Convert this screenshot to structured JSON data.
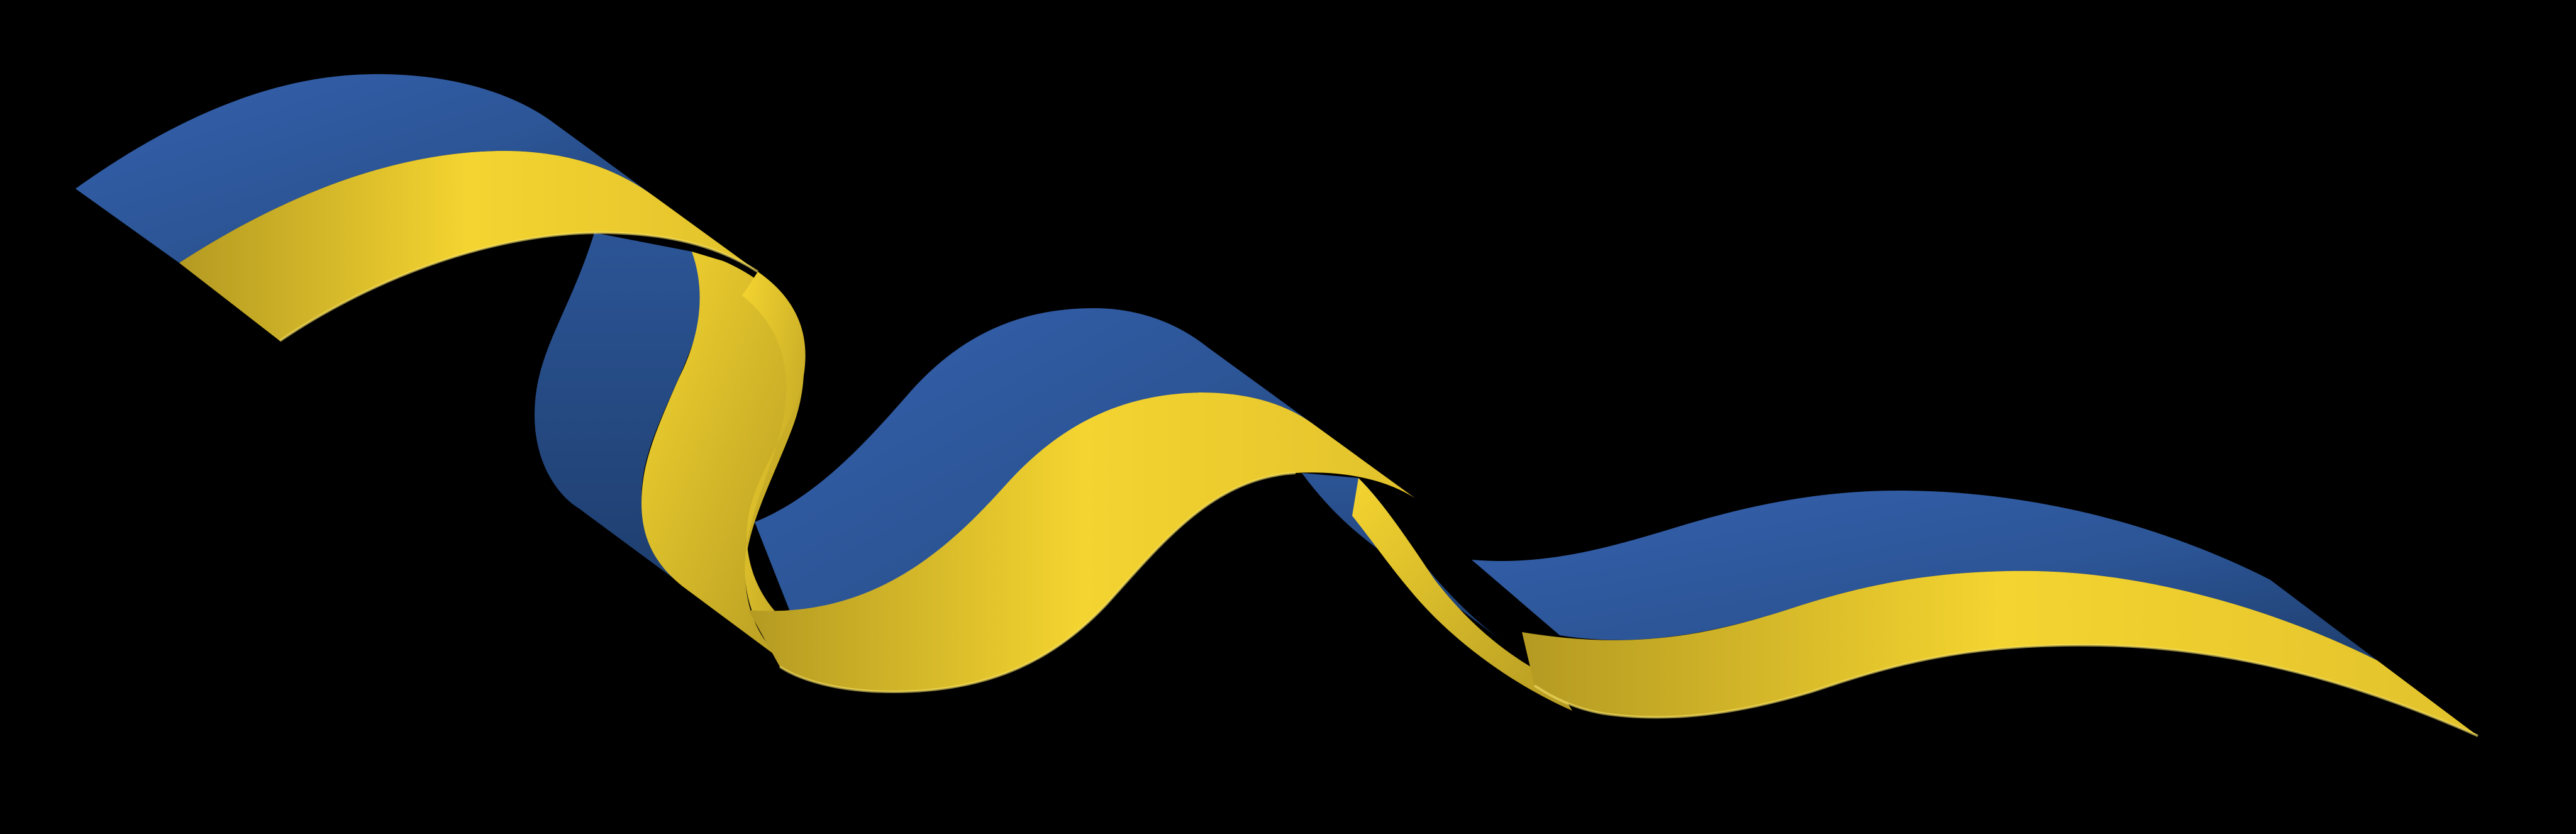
{
  "scene": {
    "subject": "ukrainian-flag-ribbon",
    "background_color": "#000000",
    "colors": {
      "blue_light": "#3561AE",
      "blue_mid": "#2C5596",
      "blue_dark": "#1E3E6E",
      "yellow_light": "#F4D430",
      "yellow_mid": "#E2C22C",
      "yellow_dark": "#B49A22"
    }
  }
}
